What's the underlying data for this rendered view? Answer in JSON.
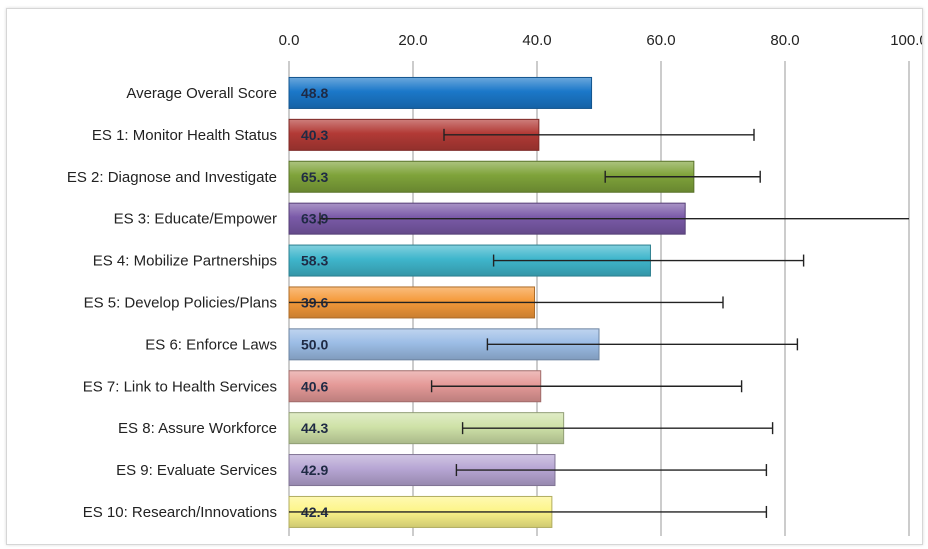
{
  "chart_data": {
    "type": "bar",
    "orientation": "horizontal",
    "title": "",
    "xlabel": "",
    "ylabel": "",
    "xlim": [
      0,
      100
    ],
    "ticks": [
      "0.0",
      "20.0",
      "40.0",
      "60.0",
      "80.0",
      "100.0"
    ],
    "tick_values": [
      0,
      20,
      40,
      60,
      80,
      100
    ],
    "grid": "vertical",
    "categories": [
      "Average Overall Score",
      "ES 1: Monitor Health Status",
      "ES 2: Diagnose and Investigate",
      "ES 3: Educate/Empower",
      "ES 4: Mobilize Partnerships",
      "ES 5: Develop Policies/Plans",
      "ES 6: Enforce Laws",
      "ES 7: Link to Health Services",
      "ES 8: Assure Workforce",
      "ES 9: Evaluate Services",
      "ES 10: Research/Innovations"
    ],
    "values": [
      48.8,
      40.3,
      65.3,
      63.9,
      58.3,
      39.6,
      50.0,
      40.6,
      44.3,
      42.9,
      42.4
    ],
    "value_labels": [
      "48.8",
      "40.3",
      "65.3",
      "63.9",
      "58.3",
      "39.6",
      "50.0",
      "40.6",
      "44.3",
      "42.9",
      "42.4"
    ],
    "error_low": [
      null,
      25,
      51,
      5,
      33,
      0,
      32,
      23,
      28,
      27,
      0
    ],
    "error_high": [
      null,
      75,
      76,
      100,
      83,
      70,
      82,
      73,
      78,
      77,
      77
    ],
    "colors": [
      "#1b78c9",
      "#b23a36",
      "#7fa33a",
      "#7a5aa8",
      "#3fb6cc",
      "#f59a3a",
      "#9cbde6",
      "#e59a98",
      "#cfe2a8",
      "#b7a6d4",
      "#fdf58a"
    ]
  }
}
